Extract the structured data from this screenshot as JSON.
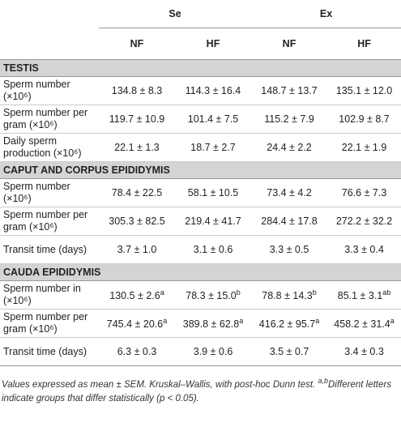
{
  "table": {
    "groups": [
      "Se",
      "Ex"
    ],
    "subgroups": [
      "NF",
      "HF",
      "NF",
      "HF"
    ],
    "sections": [
      {
        "title": "TESTIS",
        "rows": [
          {
            "label": "Sperm number (×10⁶)",
            "cells": [
              "134.8 ± 8.3",
              "114.3 ± 16.4",
              "148.7 ± 13.7",
              "135.1 ± 12.0"
            ]
          },
          {
            "label": "Sperm number per gram (×10⁶)",
            "cells": [
              "119.7 ± 10.9",
              "101.4 ± 7.5",
              "115.2 ± 7.9",
              "102.9 ± 8.7"
            ]
          },
          {
            "label": "Daily sperm production (×10⁶)",
            "cells": [
              "22.1 ± 1.3",
              "18.7 ± 2.7",
              "24.4 ± 2.2",
              "22.1 ± 1.9"
            ]
          }
        ]
      },
      {
        "title": "CAPUT AND CORPUS EPIDIDYMIS",
        "rows": [
          {
            "label": "Sperm number (×10⁶)",
            "cells": [
              "78.4 ± 22.5",
              "58.1 ± 10.5",
              "73.4 ± 4.2",
              "76.6 ± 7.3"
            ]
          },
          {
            "label": "Sperm number per gram (×10⁶)",
            "cells": [
              "305.3 ± 82.5",
              "219.4 ± 41.7",
              "284.4 ± 17.8",
              "272.2 ± 32.2"
            ]
          },
          {
            "label": "Transit time (days)",
            "cells": [
              "3.7 ± 1.0",
              "3.1 ± 0.6",
              "3.3 ± 0.5",
              "3.3 ± 0.4"
            ]
          }
        ]
      },
      {
        "title": "CAUDA EPIDIDYMIS",
        "rows": [
          {
            "label": "Sperm number in (×10⁶)",
            "cells": [
              {
                "text": "130.5 ± 2.6",
                "sup": "a"
              },
              {
                "text": "78.3 ± 15.0",
                "sup": "b"
              },
              {
                "text": "78.8 ± 14.3",
                "sup": "b"
              },
              {
                "text": "85.1 ± 3.1",
                "sup": "ab"
              }
            ]
          },
          {
            "label": "Sperm number per gram (×10⁶)",
            "cells": [
              {
                "text": "745.4 ± 20.6",
                "sup": "a"
              },
              {
                "text": "389.8 ± 62.8",
                "sup": "a"
              },
              {
                "text": "416.2 ± 95.7",
                "sup": "a"
              },
              {
                "text": "458.2 ± 31.4",
                "sup": "a"
              }
            ]
          },
          {
            "label": "Transit time (days)",
            "cells": [
              "6.3 ± 0.3",
              "3.9 ± 0.6",
              "3.5 ± 0.7",
              "3.4 ± 0.3"
            ]
          }
        ]
      }
    ]
  },
  "footnote": {
    "text": "Values expressed as mean ± SEM. Kruskal–Wallis, with post-hoc Dunn test. ",
    "sup": "a,b",
    "text2": "Different letters indicate groups that differ statistically (p < 0.05)."
  }
}
